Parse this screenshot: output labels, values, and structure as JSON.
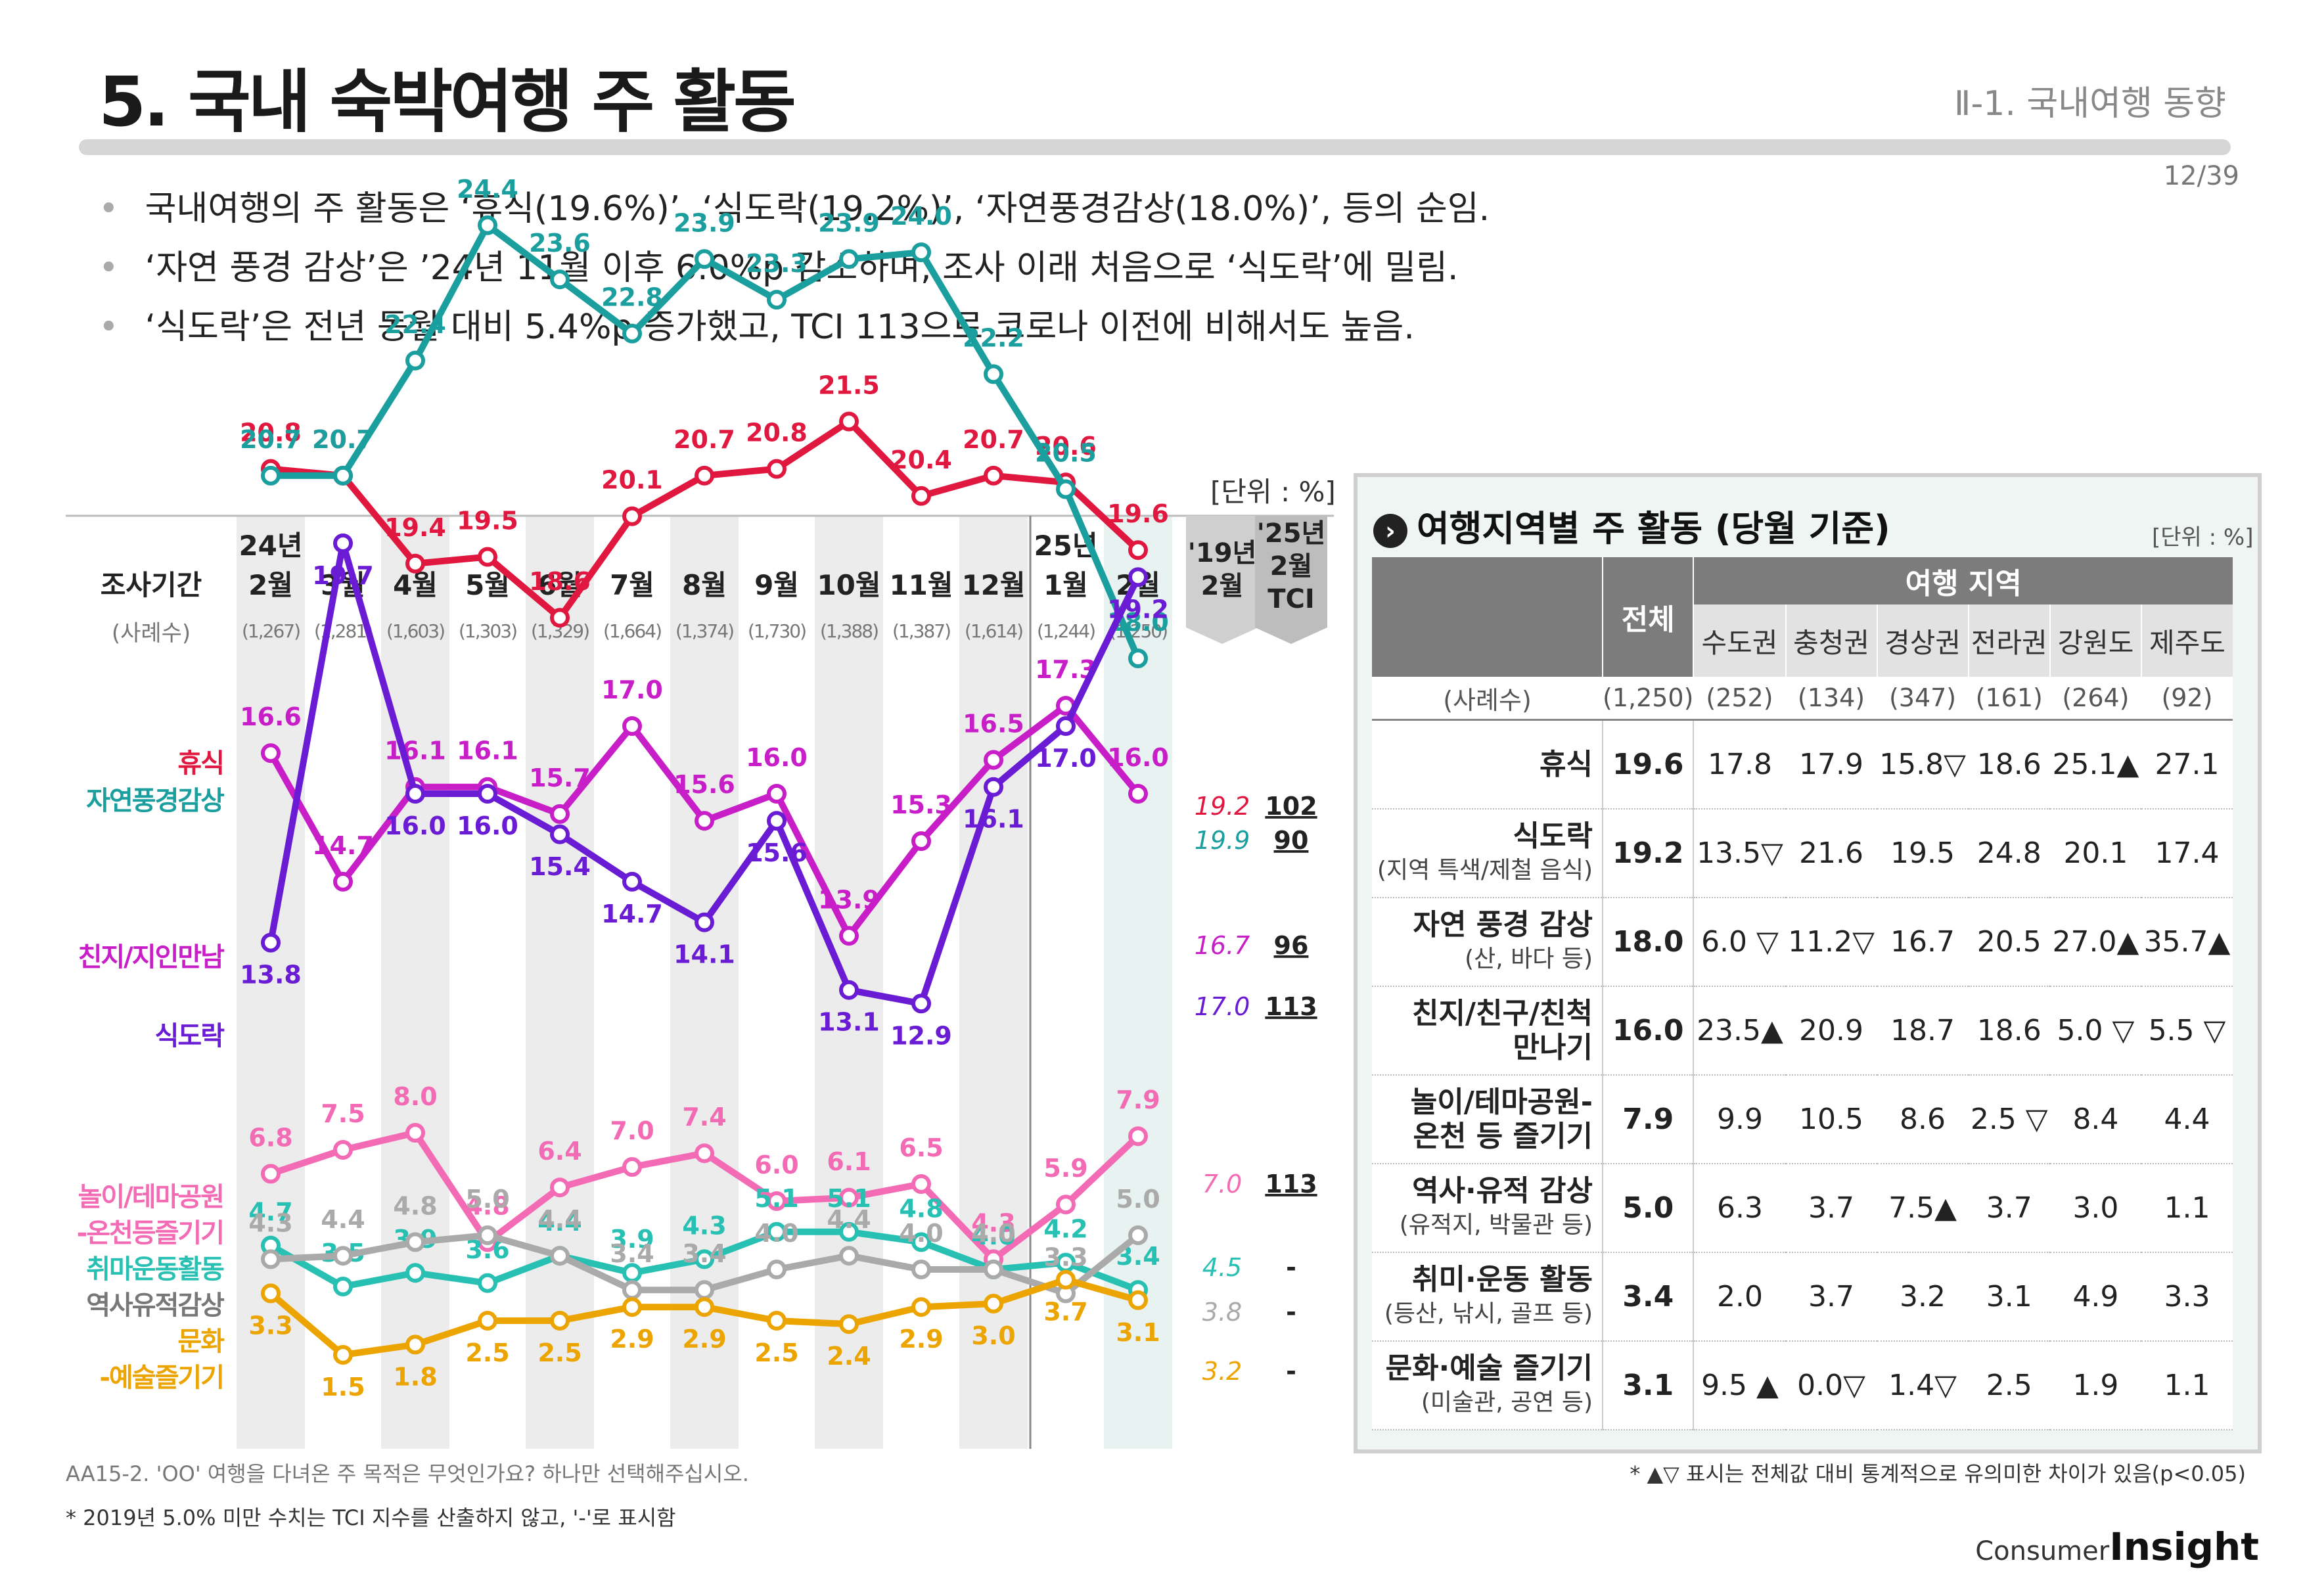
{
  "header": {
    "title": "5. 국내 숙박여행 주 활동",
    "section": "Ⅱ-1. 국내여행 동향",
    "page": "12/39"
  },
  "bullets": [
    "국내여행의 주 활동은 ‘휴식(19.6%)’, ‘식도락(19.2%)’, ‘자연풍경감상(18.0%)’, 등의 순임.",
    "‘자연 풍경 감상’은 ’24년 11월 이후 6.0%p 감소하며, 조사 이래 처음으로 ‘식도락’에 밀림.",
    "‘식도락’은 전년 동월 대비 5.4%p 증가했고, TCI 113으로 코로나 이전에 비해서도 높음."
  ],
  "chart_data": {
    "type": "line",
    "unit": "[단위 : %]",
    "period_label": "조사기간",
    "sample_label": "(사례수)",
    "categories": [
      {
        "year": "24년",
        "month": "2월",
        "n": "(1,267)"
      },
      {
        "year": "",
        "month": "3월",
        "n": "(1,281)"
      },
      {
        "year": "",
        "month": "4월",
        "n": "(1,603)"
      },
      {
        "year": "",
        "month": "5월",
        "n": "(1,303)"
      },
      {
        "year": "",
        "month": "6월",
        "n": "(1,329)"
      },
      {
        "year": "",
        "month": "7월",
        "n": "(1,664)"
      },
      {
        "year": "",
        "month": "8월",
        "n": "(1,374)"
      },
      {
        "year": "",
        "month": "9월",
        "n": "(1,730)"
      },
      {
        "year": "",
        "month": "10월",
        "n": "(1,388)"
      },
      {
        "year": "",
        "month": "11월",
        "n": "(1,387)"
      },
      {
        "year": "",
        "month": "12월",
        "n": "(1,614)"
      },
      {
        "year": "25년",
        "month": "1월",
        "n": "(1,244)"
      },
      {
        "year": "",
        "month": "2월",
        "n": "(1,250)"
      }
    ],
    "ref_headers": {
      "prev_line1": "'19년",
      "prev_line2": "2월",
      "tci_line1": "'25년",
      "tci_line2": "2월",
      "tci_line3": "TCI"
    },
    "series": [
      {
        "name": "휴식",
        "color": "#e0183f",
        "values": [
          20.8,
          20.7,
          19.4,
          19.5,
          18.6,
          20.1,
          20.7,
          20.8,
          21.5,
          20.4,
          20.7,
          20.6,
          19.6
        ],
        "prev": "19.2",
        "tci": "102"
      },
      {
        "name": "자연풍경감상",
        "color": "#1a9e9e",
        "values": [
          20.7,
          20.7,
          22.4,
          24.4,
          23.6,
          22.8,
          23.9,
          23.3,
          23.9,
          24.0,
          22.2,
          20.5,
          18.0
        ],
        "prev": "19.9",
        "tci": "90"
      },
      {
        "name": "친지/지인만남",
        "color": "#c81ec8",
        "values": [
          16.6,
          14.7,
          16.1,
          16.1,
          15.7,
          17.0,
          15.6,
          16.0,
          13.9,
          15.3,
          16.5,
          17.3,
          16.0
        ],
        "prev": "16.7",
        "tci": "96"
      },
      {
        "name": "식도락",
        "color": "#6a1bd4",
        "values": [
          13.8,
          19.7,
          16.0,
          16.0,
          15.4,
          14.7,
          14.1,
          15.6,
          13.1,
          12.9,
          16.1,
          17.0,
          19.2
        ],
        "prev": "17.0",
        "tci": "113"
      },
      {
        "name": "놀이/테마공원-온천등즐기기",
        "color": "#f26bb4",
        "values": [
          6.8,
          7.5,
          8.0,
          4.8,
          6.4,
          7.0,
          7.4,
          6.0,
          6.1,
          6.5,
          4.3,
          5.9,
          7.9
        ],
        "prev": "7.0",
        "tci": "113"
      },
      {
        "name": "취마운동활동",
        "color": "#27c0b2",
        "values": [
          4.7,
          3.5,
          3.9,
          3.6,
          4.4,
          3.9,
          4.3,
          5.1,
          5.1,
          4.8,
          4.0,
          4.2,
          3.4
        ],
        "prev": "4.5",
        "tci": "-"
      },
      {
        "name": "역사유적감상",
        "color": "#aaaaaa",
        "values": [
          4.3,
          4.4,
          4.8,
          5.0,
          4.4,
          3.4,
          3.4,
          4.0,
          4.4,
          4.0,
          4.0,
          3.3,
          5.0
        ],
        "prev": "3.8",
        "tci": "-"
      },
      {
        "name": "문화-예술즐기기",
        "color": "#eba400",
        "values": [
          3.3,
          1.5,
          1.8,
          2.5,
          2.5,
          2.9,
          2.9,
          2.5,
          2.4,
          2.9,
          3.0,
          3.7,
          3.1
        ],
        "prev": "3.2",
        "tci": "-"
      }
    ],
    "legend_labels": [
      {
        "text": "휴식",
        "color": "#e0183f"
      },
      {
        "text": "자연풍경감상",
        "color": "#1a9e9e"
      },
      {
        "text": "친지/지인만남",
        "color": "#c81ec8"
      },
      {
        "text": "식도락",
        "color": "#6a1bd4"
      },
      {
        "text": "놀이/테마공원",
        "color": "#f26bb4"
      },
      {
        "text": "-온천등즐기기",
        "color": "#f26bb4"
      },
      {
        "text": "취마운동활동",
        "color": "#27c0b2"
      },
      {
        "text": "역사유적감상",
        "color": "#777777"
      },
      {
        "text": "문화",
        "color": "#eba400"
      },
      {
        "text": "-예술즐기기",
        "color": "#eba400"
      }
    ]
  },
  "region_table": {
    "title": "여행지역별 주 활동 (당월 기준)",
    "unit": "[단위 : %]",
    "total_label": "전체",
    "group_label": "여행 지역",
    "regions": [
      "수도권",
      "충청권",
      "경상권",
      "전라권",
      "강원도",
      "제주도"
    ],
    "count_label": "(사례수)",
    "counts": [
      "(1,250)",
      "(252)",
      "(134)",
      "(347)",
      "(161)",
      "(264)",
      "(92)"
    ],
    "rows": [
      {
        "label": "휴식",
        "sub": "",
        "values": [
          "19.6",
          "17.8",
          "17.9",
          "15.8▽",
          "18.6",
          "25.1▲",
          "27.1"
        ]
      },
      {
        "label": "식도락",
        "sub": "(지역 특색/제철 음식)",
        "values": [
          "19.2",
          "13.5▽",
          "21.6",
          "19.5",
          "24.8",
          "20.1",
          "17.4"
        ]
      },
      {
        "label": "자연 풍경 감상",
        "sub": "(산, 바다 등)",
        "values": [
          "18.0",
          "6.0 ▽",
          "11.2▽",
          "16.7",
          "20.5",
          "27.0▲",
          "35.7▲"
        ]
      },
      {
        "label": "친지/친구/친척",
        "sub": "만나기",
        "sub_bold": true,
        "values": [
          "16.0",
          "23.5▲",
          "20.9",
          "18.7",
          "18.6",
          "5.0 ▽",
          "5.5 ▽"
        ]
      },
      {
        "label": "놀이/테마공원-",
        "sub": "온천 등 즐기기",
        "sub_bold": true,
        "values": [
          "7.9",
          "9.9",
          "10.5",
          "8.6",
          "2.5 ▽",
          "8.4",
          "4.4"
        ]
      },
      {
        "label": "역사·유적 감상",
        "sub": "(유적지, 박물관 등)",
        "values": [
          "5.0",
          "6.3",
          "3.7",
          "7.5▲",
          "3.7",
          "3.0",
          "1.1"
        ]
      },
      {
        "label": "취미·운동 활동",
        "sub": "(등산, 낚시, 골프 등)",
        "values": [
          "3.4",
          "2.0",
          "3.7",
          "3.2",
          "3.1",
          "4.9",
          "3.3"
        ]
      },
      {
        "label": "문화·예술 즐기기",
        "sub": "(미술관, 공연 등)",
        "values": [
          "3.1",
          "9.5 ▲",
          "0.0▽",
          "1.4▽",
          "2.5",
          "1.9",
          "1.1"
        ]
      }
    ]
  },
  "footnotes": {
    "question": "AA15-2. 'OO' 여행을 다녀온 주 목적은 무엇인가요? 하나만 선택해주십시오.",
    "tci_note": "* 2019년 5.0% 미만 수치는 TCI 지수를 산출하지 않고, '-'로 표시함",
    "sig_note": "* ▲▽ 표시는 전체값 대비 통계적으로 유의미한 차이가 있음(p<0.05)",
    "logo_small": "Consumer",
    "logo_big": "Insight"
  }
}
